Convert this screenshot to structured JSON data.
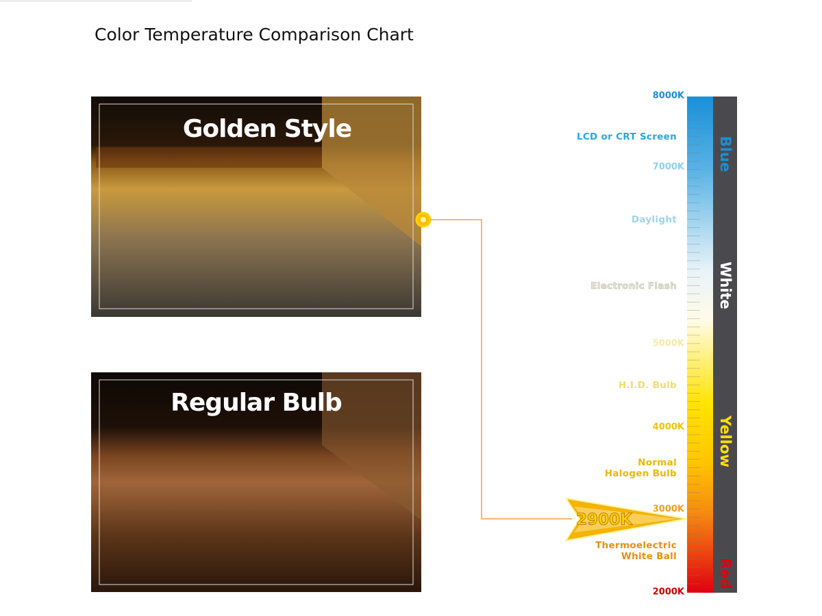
{
  "header": {
    "title": "Color Temperature Comparison Chart"
  },
  "panels": [
    {
      "label": "Golden Style"
    },
    {
      "label": "Regular Bulb"
    }
  ],
  "scale": {
    "ticks": [
      "8000K",
      "7000K",
      "5000K",
      "4000K",
      "3000K",
      "2000K"
    ],
    "annotations": [
      [
        "LCD or CRT Screen"
      ],
      [
        "Daylight"
      ],
      [
        "Electronic Flash"
      ],
      [
        "H.I.D. Bulb"
      ],
      [
        "Normal",
        "Halogen Bulb"
      ],
      [
        "Thermoelectric",
        "White Ball"
      ]
    ],
    "bands": [
      "Blue",
      "White",
      "Yellow",
      "Red"
    ],
    "marker": "2900K"
  }
}
